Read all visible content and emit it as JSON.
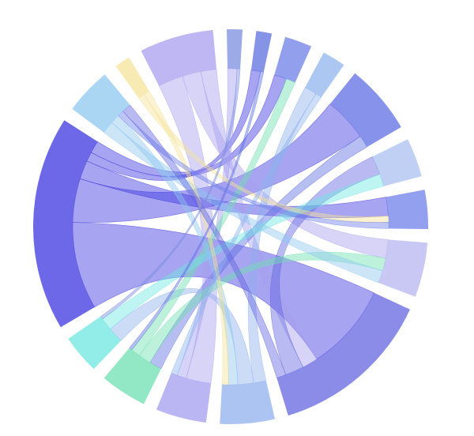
{
  "chart_data": {
    "type": "chord",
    "groups": [
      {
        "color": "#7b8fe0"
      },
      {
        "color": "#5e70e0"
      },
      {
        "color": "#6c7fe6"
      },
      {
        "color": "#8fb4ee"
      },
      {
        "color": "#5f6fe3"
      },
      {
        "color": "#a9c0f0"
      },
      {
        "color": "#6f80ea"
      },
      {
        "color": "#b7b6f0"
      },
      {
        "color": "#6366e0"
      },
      {
        "color": "#8fb0ec"
      },
      {
        "color": "#a39ef0"
      },
      {
        "color": "#6ee0b0"
      },
      {
        "color": "#6ee6e0"
      },
      {
        "color": "#3b35e0"
      },
      {
        "color": "#8dc8f0"
      },
      {
        "color": "#f5e39a"
      },
      {
        "color": "#a99ff0"
      }
    ],
    "chords": [
      {
        "source": 13,
        "target": 8,
        "value": 28
      },
      {
        "source": 13,
        "target": 4,
        "value": 14
      },
      {
        "source": 13,
        "target": 6,
        "value": 6
      },
      {
        "source": 13,
        "target": 1,
        "value": 3
      },
      {
        "source": 13,
        "target": 2,
        "value": 4
      },
      {
        "source": 16,
        "target": 10,
        "value": 8
      },
      {
        "source": 16,
        "target": 7,
        "value": 6
      },
      {
        "source": 16,
        "target": 8,
        "value": 5
      },
      {
        "source": 4,
        "target": 11,
        "value": 4
      },
      {
        "source": 8,
        "target": 5,
        "value": 6
      },
      {
        "source": 9,
        "target": 3,
        "value": 4
      },
      {
        "source": 9,
        "target": 12,
        "value": 5
      },
      {
        "source": 10,
        "target": 0,
        "value": 3
      },
      {
        "source": 11,
        "target": 7,
        "value": 4
      },
      {
        "source": 11,
        "target": 2,
        "value": 3
      },
      {
        "source": 12,
        "target": 5,
        "value": 4
      },
      {
        "source": 14,
        "target": 7,
        "value": 4
      },
      {
        "source": 14,
        "target": 9,
        "value": 3
      },
      {
        "source": 15,
        "target": 6,
        "value": 2
      },
      {
        "source": 15,
        "target": 9,
        "value": 2
      },
      {
        "source": 0,
        "target": 12,
        "value": 1
      },
      {
        "source": 1,
        "target": 11,
        "value": 1
      },
      {
        "source": 3,
        "target": 10,
        "value": 2
      },
      {
        "source": 6,
        "target": 14,
        "value": 2
      },
      {
        "source": 8,
        "target": 14,
        "value": 3
      }
    ]
  }
}
